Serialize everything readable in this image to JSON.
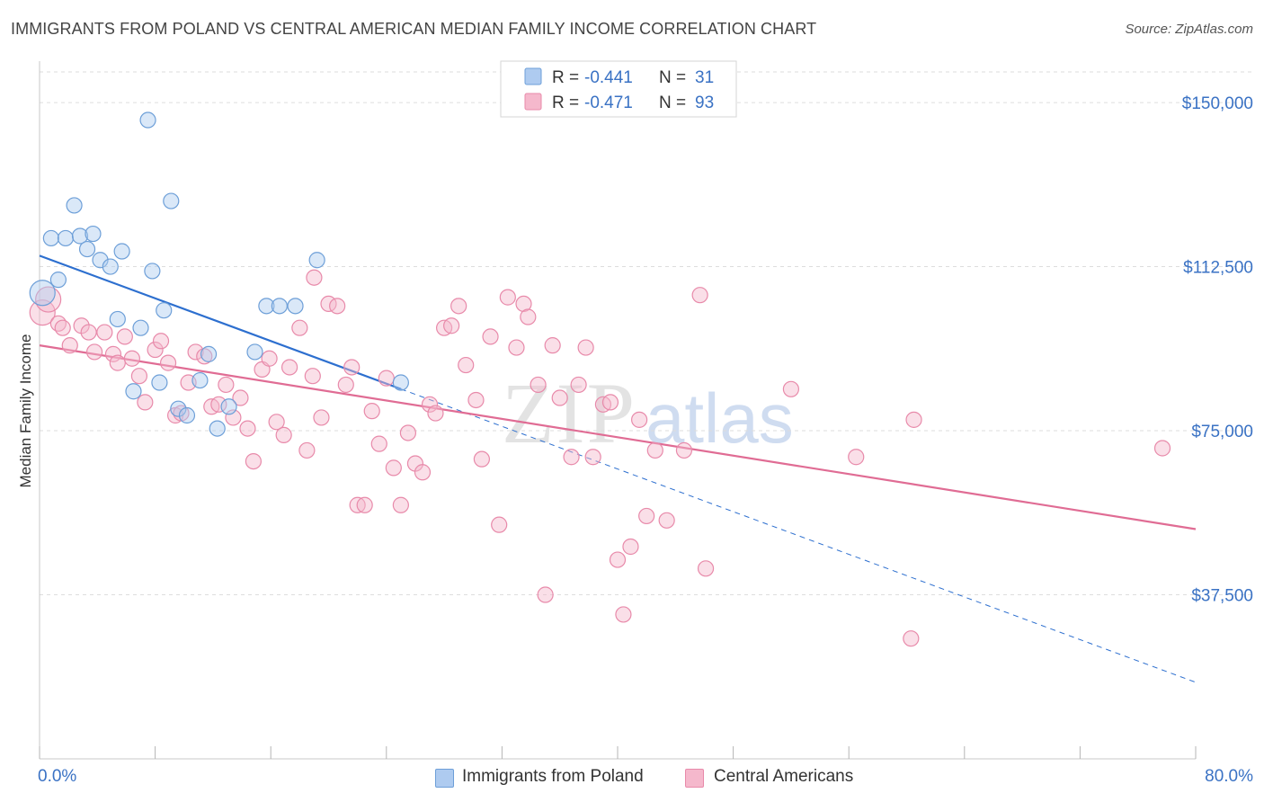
{
  "title": "IMMIGRANTS FROM POLAND VS CENTRAL AMERICAN MEDIAN FAMILY INCOME CORRELATION CHART",
  "source": "Source: ZipAtlas.com",
  "watermark": {
    "zip": "ZIP",
    "atlas": "atlas"
  },
  "colors": {
    "poland_fill": "#aecbf0",
    "poland_stroke": "#6d9fd8",
    "poland_line": "#2d6fcf",
    "ca_fill": "#f5b8cc",
    "ca_stroke": "#e88aaa",
    "ca_line": "#e06c94",
    "axis_label": "#3a72c4",
    "grid": "#dddddd"
  },
  "legend": {
    "rows": [
      {
        "r_label": "R =",
        "r_value": "-0.441",
        "n_label": "N =",
        "n_value": "31"
      },
      {
        "r_label": "R =",
        "r_value": "-0.471",
        "n_label": "N =",
        "n_value": "93"
      }
    ]
  },
  "chart_data": {
    "type": "scatter",
    "title": "IMMIGRANTS FROM POLAND VS CENTRAL AMERICAN MEDIAN FAMILY INCOME CORRELATION CHART",
    "xlabel": "",
    "ylabel": "Median Family Income",
    "xlim": [
      0,
      80
    ],
    "ylim": [
      0,
      157000
    ],
    "x_tick_labels": [
      "0.0%",
      "80.0%"
    ],
    "y_ticks": [
      {
        "value": 37500,
        "label": "$37,500"
      },
      {
        "value": 75000,
        "label": "$75,000"
      },
      {
        "value": 112500,
        "label": "$112,500"
      },
      {
        "value": 150000,
        "label": "$150,000"
      }
    ],
    "series": [
      {
        "name": "Immigrants from Poland",
        "trend": {
          "x_start": 0,
          "y_start": 115000,
          "x_solid_end": 25,
          "x_end": 80,
          "y_end": 17500
        },
        "points": [
          [
            0.2,
            106500
          ],
          [
            0.8,
            119000
          ],
          [
            1.3,
            109500
          ],
          [
            1.8,
            119000
          ],
          [
            2.4,
            126500
          ],
          [
            2.8,
            119500
          ],
          [
            3.3,
            116500
          ],
          [
            3.7,
            120000
          ],
          [
            4.2,
            114000
          ],
          [
            4.9,
            112500
          ],
          [
            5.7,
            116000
          ],
          [
            5.4,
            100500
          ],
          [
            6.5,
            84000
          ],
          [
            7.0,
            98500
          ],
          [
            7.5,
            146000
          ],
          [
            7.8,
            111500
          ],
          [
            8.3,
            86000
          ],
          [
            8.6,
            102500
          ],
          [
            9.1,
            127500
          ],
          [
            9.6,
            80000
          ],
          [
            10.2,
            78500
          ],
          [
            11.1,
            86500
          ],
          [
            11.7,
            92500
          ],
          [
            12.3,
            75500
          ],
          [
            13.1,
            80500
          ],
          [
            14.9,
            93000
          ],
          [
            15.7,
            103500
          ],
          [
            16.6,
            103500
          ],
          [
            17.7,
            103500
          ],
          [
            19.2,
            114000
          ],
          [
            25.0,
            86000
          ]
        ]
      },
      {
        "name": "Central Americans",
        "trend": {
          "x_start": 0,
          "y_start": 94500,
          "x_end": 80,
          "y_end": 52500
        },
        "points": [
          [
            0.2,
            102000
          ],
          [
            0.6,
            105000
          ],
          [
            1.3,
            99500
          ],
          [
            1.6,
            98500
          ],
          [
            2.1,
            94500
          ],
          [
            2.9,
            99000
          ],
          [
            3.4,
            97500
          ],
          [
            3.8,
            93000
          ],
          [
            4.5,
            97500
          ],
          [
            5.1,
            92500
          ],
          [
            5.4,
            90500
          ],
          [
            5.9,
            96500
          ],
          [
            6.4,
            91500
          ],
          [
            6.9,
            87500
          ],
          [
            7.3,
            81500
          ],
          [
            8.0,
            93500
          ],
          [
            8.4,
            95500
          ],
          [
            8.9,
            90500
          ],
          [
            9.4,
            78500
          ],
          [
            9.8,
            79000
          ],
          [
            10.3,
            86000
          ],
          [
            10.8,
            93000
          ],
          [
            11.4,
            92000
          ],
          [
            11.9,
            80500
          ],
          [
            12.4,
            81000
          ],
          [
            12.9,
            85500
          ],
          [
            13.4,
            78000
          ],
          [
            13.9,
            82500
          ],
          [
            14.4,
            75500
          ],
          [
            14.8,
            68000
          ],
          [
            15.4,
            89000
          ],
          [
            15.9,
            91500
          ],
          [
            16.4,
            77000
          ],
          [
            16.9,
            74000
          ],
          [
            17.3,
            89500
          ],
          [
            18.0,
            98500
          ],
          [
            18.5,
            70500
          ],
          [
            18.9,
            87500
          ],
          [
            19.0,
            110000
          ],
          [
            19.5,
            78000
          ],
          [
            20.0,
            104000
          ],
          [
            20.6,
            103500
          ],
          [
            21.2,
            85500
          ],
          [
            21.6,
            89500
          ],
          [
            22.0,
            58000
          ],
          [
            22.5,
            58000
          ],
          [
            23.0,
            79500
          ],
          [
            23.5,
            72000
          ],
          [
            24.0,
            87000
          ],
          [
            24.5,
            66500
          ],
          [
            25.0,
            58000
          ],
          [
            25.5,
            74500
          ],
          [
            26.0,
            67500
          ],
          [
            26.5,
            65500
          ],
          [
            27.0,
            81000
          ],
          [
            27.4,
            79000
          ],
          [
            28.0,
            98500
          ],
          [
            28.5,
            99000
          ],
          [
            29.0,
            103500
          ],
          [
            29.5,
            90000
          ],
          [
            30.2,
            82000
          ],
          [
            30.6,
            68500
          ],
          [
            31.2,
            96500
          ],
          [
            31.8,
            53500
          ],
          [
            32.4,
            105500
          ],
          [
            33.0,
            94000
          ],
          [
            33.5,
            104000
          ],
          [
            33.8,
            101000
          ],
          [
            34.5,
            85500
          ],
          [
            35.0,
            37500
          ],
          [
            35.5,
            94500
          ],
          [
            36.0,
            82500
          ],
          [
            36.8,
            69000
          ],
          [
            37.3,
            85500
          ],
          [
            37.8,
            94000
          ],
          [
            38.3,
            69000
          ],
          [
            39.0,
            81000
          ],
          [
            39.5,
            81500
          ],
          [
            40.0,
            45500
          ],
          [
            40.4,
            33000
          ],
          [
            40.9,
            48500
          ],
          [
            41.5,
            77500
          ],
          [
            42.0,
            55500
          ],
          [
            42.6,
            70500
          ],
          [
            43.4,
            54500
          ],
          [
            44.6,
            70500
          ],
          [
            45.7,
            106000
          ],
          [
            46.1,
            43500
          ],
          [
            52.0,
            84500
          ],
          [
            56.5,
            69000
          ],
          [
            60.3,
            27500
          ],
          [
            60.5,
            77500
          ],
          [
            77.7,
            71000
          ]
        ]
      }
    ],
    "legend_position": "top-center"
  }
}
